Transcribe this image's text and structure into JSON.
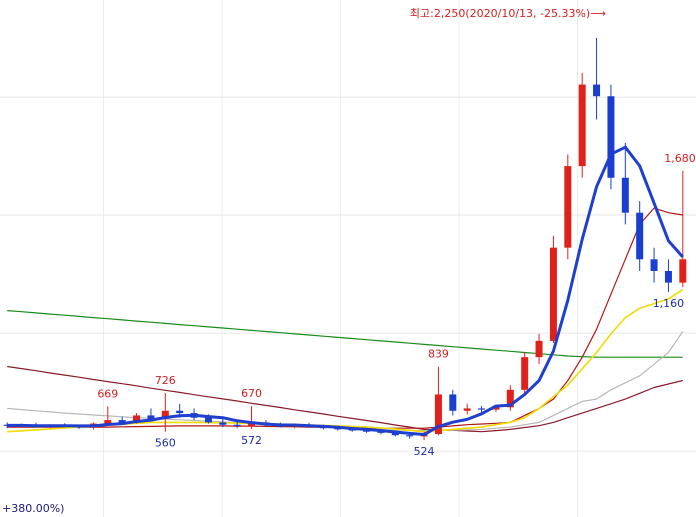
{
  "chart_data": {
    "type": "candlestick",
    "ylim": [
      194,
      2413
    ],
    "grid_y": [
      477,
      983,
      1490,
      1996
    ],
    "up_color": "#e0201b",
    "down_color": "#1a3fd0",
    "open": [
      590,
      585,
      590,
      582,
      588,
      584,
      578,
      595,
      610,
      600,
      630,
      615,
      650,
      640,
      620,
      600,
      590,
      585,
      600,
      590,
      582,
      590,
      580,
      575,
      570,
      565,
      560,
      555,
      545,
      540,
      550,
      720,
      650,
      660,
      655,
      665,
      740,
      880,
      950,
      1350,
      1700,
      2050,
      2000,
      1650,
      1500,
      1300,
      1250,
      1200
    ],
    "high": [
      600,
      595,
      598,
      592,
      596,
      590,
      600,
      669,
      625,
      640,
      660,
      726,
      680,
      660,
      635,
      615,
      605,
      670,
      610,
      600,
      595,
      598,
      590,
      585,
      580,
      575,
      570,
      565,
      555,
      560,
      839,
      740,
      680,
      670,
      675,
      760,
      900,
      980,
      1400,
      1750,
      2100,
      2250,
      2050,
      1800,
      1550,
      1350,
      1300,
      1680
    ],
    "low": [
      575,
      578,
      580,
      575,
      580,
      572,
      570,
      590,
      595,
      595,
      610,
      560,
      620,
      610,
      595,
      580,
      575,
      572,
      585,
      578,
      575,
      578,
      570,
      565,
      560,
      555,
      548,
      540,
      530,
      524,
      545,
      630,
      635,
      640,
      645,
      650,
      720,
      850,
      940,
      1300,
      1650,
      1900,
      1600,
      1450,
      1250,
      1200,
      1160,
      1180
    ],
    "close": [
      585,
      590,
      582,
      588,
      584,
      578,
      595,
      610,
      600,
      630,
      615,
      650,
      640,
      620,
      600,
      590,
      585,
      600,
      590,
      582,
      590,
      580,
      575,
      570,
      565,
      560,
      555,
      545,
      540,
      550,
      720,
      650,
      660,
      655,
      665,
      740,
      880,
      950,
      1350,
      1700,
      2050,
      2000,
      1650,
      1500,
      1300,
      1250,
      1200,
      1300
    ],
    "high_labels": [
      null,
      null,
      null,
      null,
      null,
      null,
      null,
      "669",
      null,
      null,
      null,
      "726",
      null,
      null,
      null,
      null,
      null,
      "670",
      null,
      null,
      null,
      null,
      null,
      null,
      null,
      null,
      null,
      null,
      null,
      null,
      "839",
      null,
      null,
      null,
      null,
      null,
      null,
      null,
      null,
      null,
      null,
      null,
      null,
      null,
      null,
      null,
      null,
      "1,680"
    ],
    "low_labels": [
      null,
      null,
      null,
      null,
      null,
      null,
      null,
      null,
      null,
      null,
      null,
      "560",
      null,
      null,
      null,
      null,
      null,
      "572",
      null,
      null,
      null,
      null,
      null,
      null,
      null,
      null,
      null,
      null,
      null,
      "524",
      null,
      null,
      null,
      null,
      null,
      null,
      null,
      null,
      null,
      null,
      null,
      null,
      null,
      null,
      null,
      null,
      "1,160",
      null
    ],
    "series": [
      {
        "color": "#1e3fcf",
        "values": [
          587,
          587,
          586,
          586,
          586,
          585,
          585,
          591,
          595,
          604,
          610,
          621,
          629,
          631,
          625,
          620,
          607,
          599,
          593,
          589,
          589,
          586,
          583,
          579,
          574,
          570,
          565,
          559,
          553,
          548,
          582,
          601,
          613,
          637,
          670,
          674,
          720,
          780,
          906,
          1124,
          1386,
          1612,
          1751,
          1781,
          1701,
          1541,
          1380,
          1310
        ]
      },
      {
        "color": "#f2dc00",
        "values": [
          560,
          564,
          568,
          572,
          576,
          580,
          584,
          588,
          592,
          596,
          600,
          600,
          600,
          600,
          599,
          598,
          597,
          596,
          595,
          593,
          591,
          589,
          587,
          585,
          583,
          580,
          576,
          572,
          566,
          560,
          565,
          570,
          575,
          580,
          590,
          600,
          620,
          660,
          710,
          760,
          830,
          900,
          980,
          1050,
          1090,
          1110,
          1130,
          1170
        ]
      },
      {
        "color": "#b01818",
        "values": [
          580,
          580,
          580,
          580,
          580,
          580,
          580,
          580,
          581,
          582,
          583,
          584,
          585,
          585,
          585,
          585,
          584,
          584,
          583,
          582,
          581,
          580,
          579,
          578,
          577,
          576,
          575,
          575,
          575,
          575,
          580,
          585,
          590,
          593,
          596,
          600,
          630,
          660,
          700,
          780,
          880,
          1000,
          1150,
          1300,
          1450,
          1520,
          1500,
          1490
        ]
      },
      {
        "color": "#b8b8b8",
        "values": [
          660,
          655,
          650,
          645,
          640,
          636,
          632,
          628,
          624,
          620,
          617,
          614,
          611,
          608,
          605,
          602,
          599,
          596,
          593,
          590,
          587,
          584,
          581,
          578,
          575,
          572,
          569,
          567,
          566,
          565,
          566,
          567,
          568,
          570,
          575,
          580,
          590,
          600,
          630,
          660,
          690,
          700,
          740,
          770,
          800,
          850,
          900,
          990
        ]
      },
      {
        "color": "#8b1a2a",
        "values": [
          840,
          831,
          822,
          812,
          803,
          794,
          784,
          775,
          766,
          757,
          747,
          738,
          729,
          719,
          710,
          701,
          692,
          682,
          673,
          664,
          654,
          645,
          636,
          626,
          617,
          608,
          599,
          589,
          580,
          570,
          568,
          566,
          563,
          560,
          565,
          570,
          578,
          586,
          600,
          620,
          640,
          660,
          680,
          700,
          725,
          750,
          765,
          780
        ]
      },
      {
        "color": "#1a8c1a",
        "values": [
          1080,
          1075,
          1070,
          1065,
          1060,
          1055,
          1050,
          1045,
          1040,
          1035,
          1030,
          1025,
          1020,
          1015,
          1010,
          1005,
          1000,
          995,
          990,
          985,
          980,
          975,
          970,
          965,
          960,
          955,
          950,
          945,
          940,
          935,
          930,
          925,
          920,
          915,
          910,
          905,
          900,
          895,
          890,
          885,
          882,
          880,
          880,
          880,
          880,
          880,
          880,
          880
        ]
      }
    ],
    "annotations": {
      "max": "최고:2,250(2020/10/13, -25.33%)⟶",
      "change": "+380.00%)"
    }
  }
}
